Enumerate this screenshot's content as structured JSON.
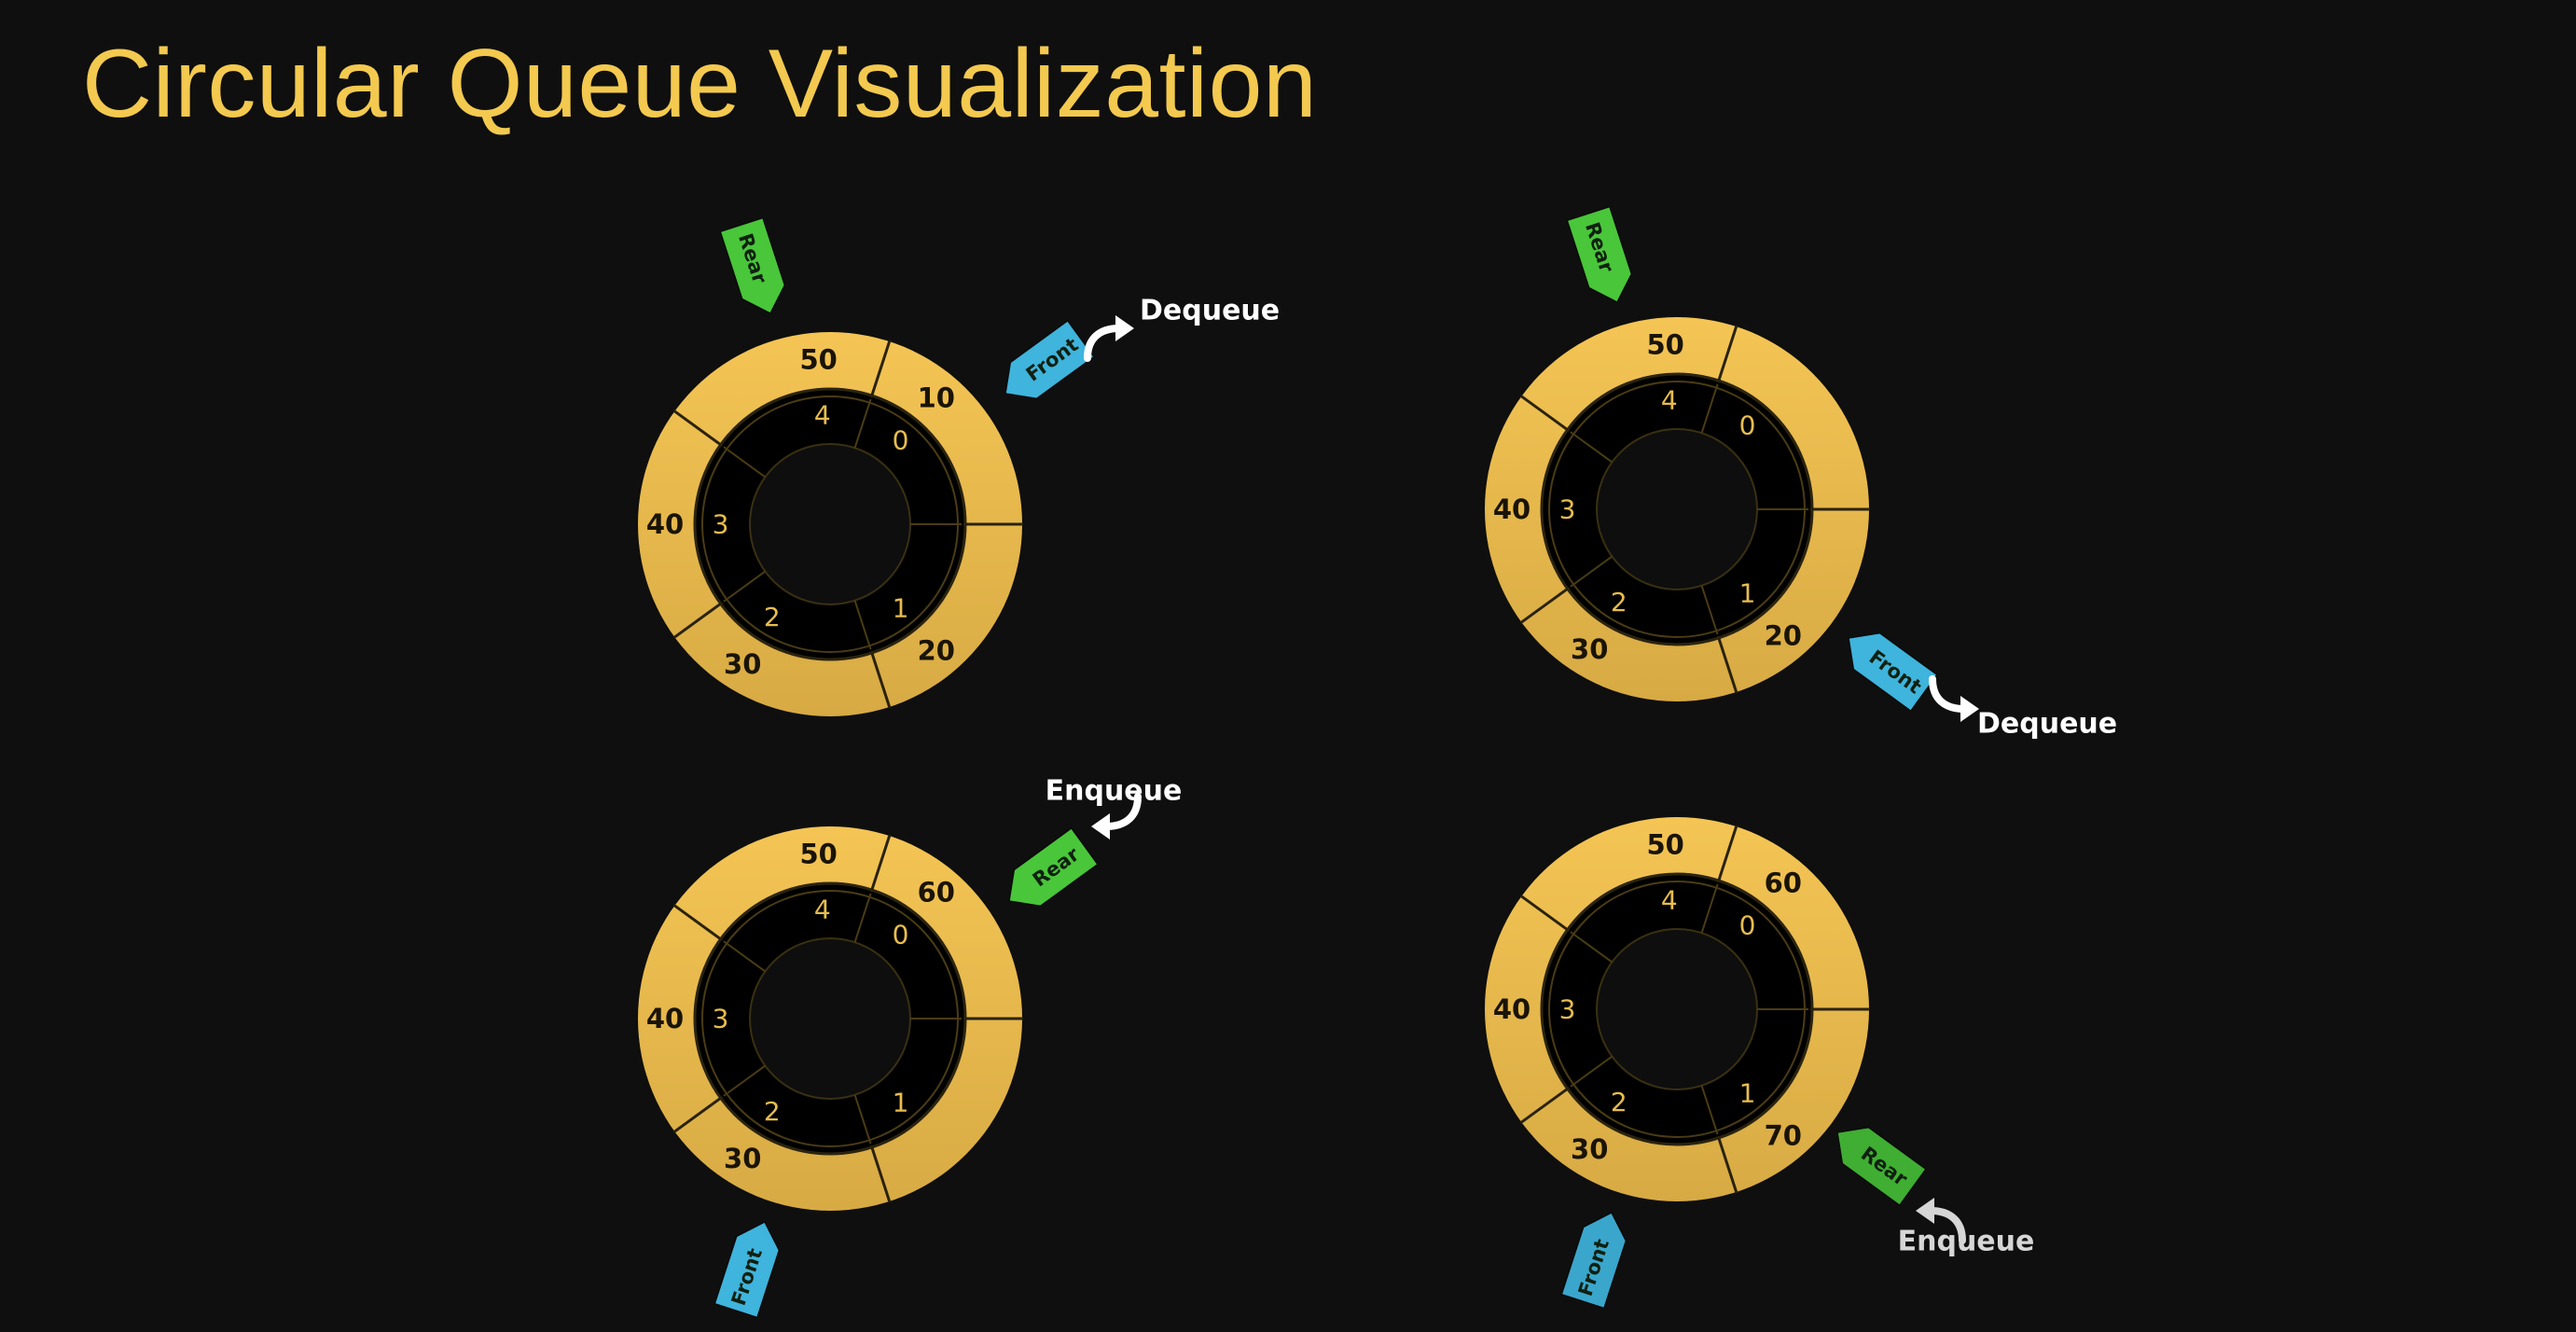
{
  "title": "Circular Queue Visualization",
  "colors": {
    "background": "#0f0f0f",
    "title": "#f3c94f",
    "ring_outer": "#f1c04e",
    "ring_inner": "#000000",
    "index_text": "#e7bd4f",
    "rear_tag": "#49c63a",
    "front_tag": "#3fb4dc",
    "op_text": "#ffffff"
  },
  "queues": [
    {
      "name": "queue-1",
      "slots": [
        {
          "index": "0",
          "value": "10"
        },
        {
          "index": "1",
          "value": "20"
        },
        {
          "index": "2",
          "value": "30"
        },
        {
          "index": "3",
          "value": "40"
        },
        {
          "index": "4",
          "value": "50"
        }
      ],
      "pointers": [
        {
          "label": "Rear",
          "type": "rear",
          "icon": "rear-tag-icon"
        },
        {
          "label": "Front",
          "type": "front",
          "icon": "front-tag-icon"
        }
      ],
      "operation": {
        "label": "Dequeue",
        "icon": "curved-arrow-icon"
      }
    },
    {
      "name": "queue-2",
      "slots": [
        {
          "index": "0",
          "value": ""
        },
        {
          "index": "1",
          "value": "20"
        },
        {
          "index": "2",
          "value": "30"
        },
        {
          "index": "3",
          "value": "40"
        },
        {
          "index": "4",
          "value": "50"
        }
      ],
      "pointers": [
        {
          "label": "Rear",
          "type": "rear",
          "icon": "rear-tag-icon"
        },
        {
          "label": "Front",
          "type": "front",
          "icon": "front-tag-icon"
        }
      ],
      "operation": {
        "label": "Dequeue",
        "icon": "curved-arrow-icon"
      }
    },
    {
      "name": "queue-3",
      "slots": [
        {
          "index": "0",
          "value": "60"
        },
        {
          "index": "1",
          "value": ""
        },
        {
          "index": "2",
          "value": "30"
        },
        {
          "index": "3",
          "value": "40"
        },
        {
          "index": "4",
          "value": "50"
        }
      ],
      "pointers": [
        {
          "label": "Rear",
          "type": "rear",
          "icon": "rear-tag-icon"
        },
        {
          "label": "Front",
          "type": "front",
          "icon": "front-tag-icon"
        }
      ],
      "operation": {
        "label": "Enqueue",
        "icon": "curved-arrow-icon"
      }
    },
    {
      "name": "queue-4",
      "slots": [
        {
          "index": "0",
          "value": "60"
        },
        {
          "index": "1",
          "value": "70"
        },
        {
          "index": "2",
          "value": "30"
        },
        {
          "index": "3",
          "value": "40"
        },
        {
          "index": "4",
          "value": "50"
        }
      ],
      "pointers": [
        {
          "label": "Rear",
          "type": "rear",
          "icon": "rear-tag-icon"
        },
        {
          "label": "Front",
          "type": "front",
          "icon": "front-tag-icon"
        }
      ],
      "operation": {
        "label": "Enqueue",
        "icon": "curved-arrow-icon"
      }
    }
  ]
}
